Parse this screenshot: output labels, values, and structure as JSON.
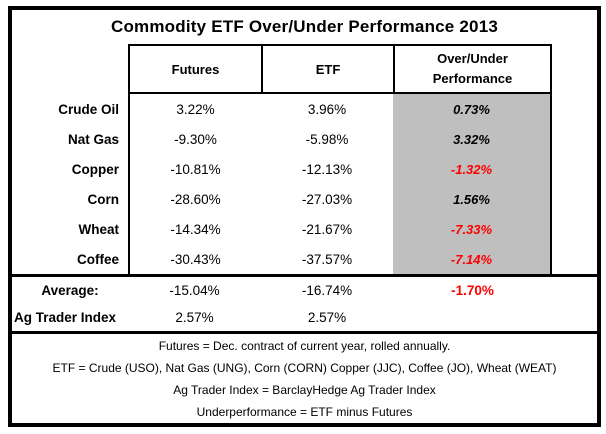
{
  "chart_data": {
    "type": "table",
    "title": "Commodity ETF Over/Under Performance 2013",
    "header": {
      "futures": "Futures",
      "etf": "ETF",
      "overunder": "Over/Under Performance"
    },
    "rows": [
      {
        "label": "Crude Oil",
        "futures": "3.22%",
        "etf": "3.96%",
        "overunder": "0.73%"
      },
      {
        "label": "Nat Gas",
        "futures": "-9.30%",
        "etf": "-5.98%",
        "overunder": "3.32%"
      },
      {
        "label": "Copper",
        "futures": "-10.81%",
        "etf": "-12.13%",
        "overunder": "-1.32%"
      },
      {
        "label": "Corn",
        "futures": "-28.60%",
        "etf": "-27.03%",
        "overunder": "1.56%"
      },
      {
        "label": "Wheat",
        "futures": "-14.34%",
        "etf": "-21.67%",
        "overunder": "-7.33%"
      },
      {
        "label": "Coffee",
        "futures": "-30.43%",
        "etf": "-37.57%",
        "overunder": "-7.14%"
      }
    ],
    "summary_rows": [
      {
        "label": "Average:",
        "futures": "-15.04%",
        "etf": "-16.74%",
        "overunder": "-1.70%"
      },
      {
        "label": "Ag Trader Index",
        "futures": "2.57%",
        "etf": "2.57%",
        "overunder": ""
      }
    ],
    "notes": [
      "Futures = Dec. contract of current year, rolled annually.",
      "ETF = Crude (USO), Nat Gas (UNG), Corn (CORN) Copper (JJC), Coffee (JO), Wheat (WEAT)",
      "Ag Trader Index = BarclayHedge Ag Trader Index",
      "Underperformance = ETF minus Futures"
    ],
    "colors": {
      "shaded_column_bg": "#bfbfbf",
      "negative_performance": "#ff0000",
      "border": "#000000",
      "text": "#000000"
    },
    "layout": {
      "shaded_column": "Over/Under Performance",
      "grid": "outline, header boxes and section separators only",
      "legend": "none"
    }
  }
}
